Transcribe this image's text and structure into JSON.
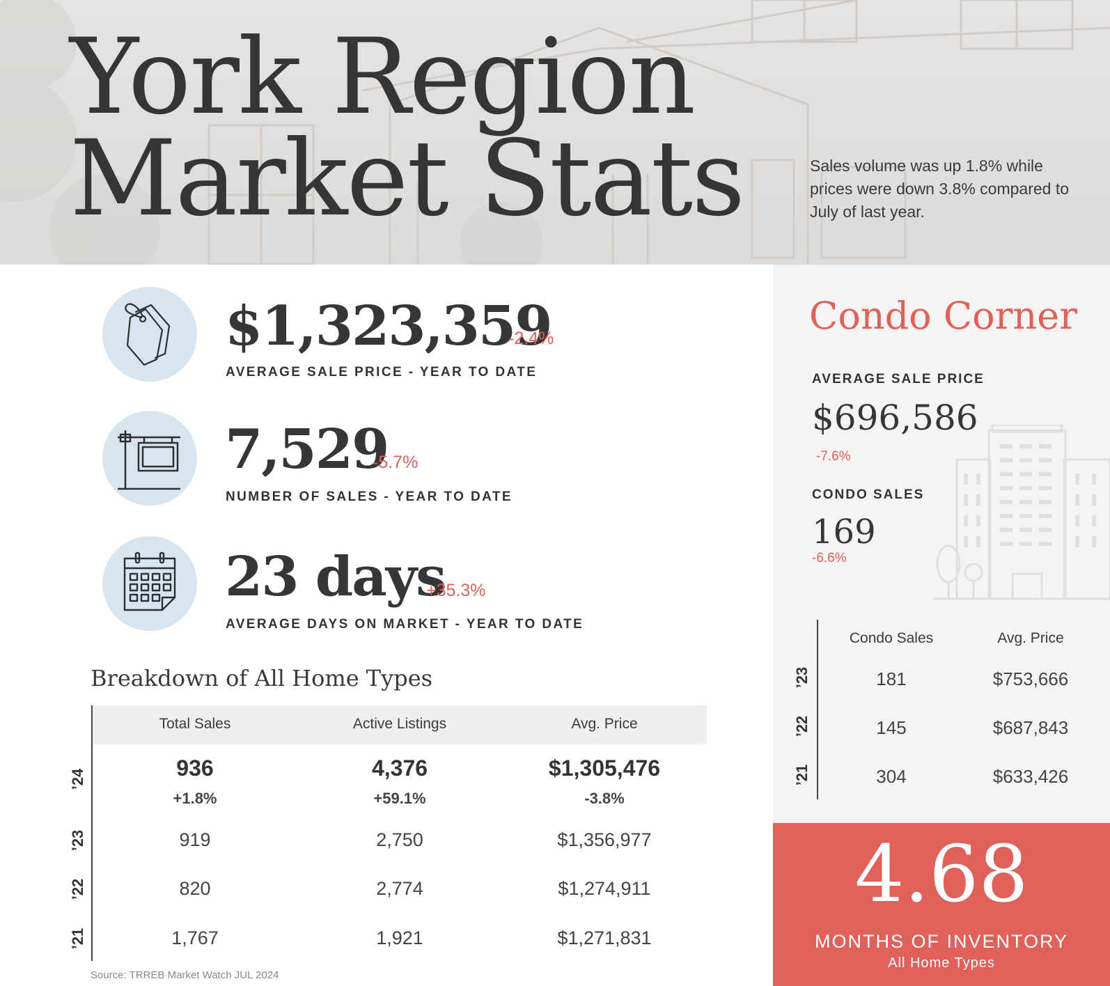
{
  "header": {
    "title_line1": "York Region",
    "title_line2": "Market Stats",
    "summary": "Sales volume was up 1.8% while prices were down 3.8% compared to July of last year."
  },
  "stats": [
    {
      "icon": "price-tag-icon",
      "value": "$1,323,359",
      "change": "-2.4%",
      "label": "AVERAGE SALE PRICE - YEAR TO DATE"
    },
    {
      "icon": "sale-sign-icon",
      "value": "7,529",
      "change": "-5.7%",
      "label": "NUMBER OF SALES - YEAR TO DATE"
    },
    {
      "icon": "calendar-icon",
      "value": "23 days",
      "change": "+35.3%",
      "label": "AVERAGE DAYS ON MARKET - YEAR TO DATE"
    }
  ],
  "breakdown": {
    "title": "Breakdown of All Home Types",
    "columns": [
      "Total Sales",
      "Active Listings",
      "Avg. Price"
    ],
    "rows": [
      {
        "year": "’24",
        "cells": [
          "936",
          "4,376",
          "$1,305,476"
        ],
        "changes": [
          "+1.8%",
          "+59.1%",
          "-3.8%"
        ]
      },
      {
        "year": "’23",
        "cells": [
          "919",
          "2,750",
          "$1,356,977"
        ]
      },
      {
        "year": "’22",
        "cells": [
          "820",
          "2,774",
          "$1,274,911"
        ]
      },
      {
        "year": "’21",
        "cells": [
          "1,767",
          "1,921",
          "$1,271,831"
        ]
      }
    ]
  },
  "source": "Source: TRREB Market Watch JUL 2024",
  "condo": {
    "title": "Condo Corner",
    "avg_price_label": "AVERAGE SALE PRICE",
    "avg_price": "$696,586",
    "avg_price_change": "-7.6%",
    "sales_label": "CONDO SALES",
    "sales": "169",
    "sales_change": "-6.6%",
    "columns": [
      "Condo Sales",
      "Avg. Price"
    ],
    "rows": [
      {
        "year": "’23",
        "cells": [
          "181",
          "$753,666"
        ]
      },
      {
        "year": "’22",
        "cells": [
          "145",
          "$687,843"
        ]
      },
      {
        "year": "’21",
        "cells": [
          "304",
          "$633,426"
        ]
      }
    ]
  },
  "inventory": {
    "value": "4.68",
    "label": "MONTHS OF INVENTORY",
    "sublabel": "All Home Types"
  },
  "colors": {
    "accent": "#e0605a",
    "icon_circle": "#d6e5ef",
    "text_dark": "#353535",
    "panel_bg": "#f5f4f3"
  }
}
